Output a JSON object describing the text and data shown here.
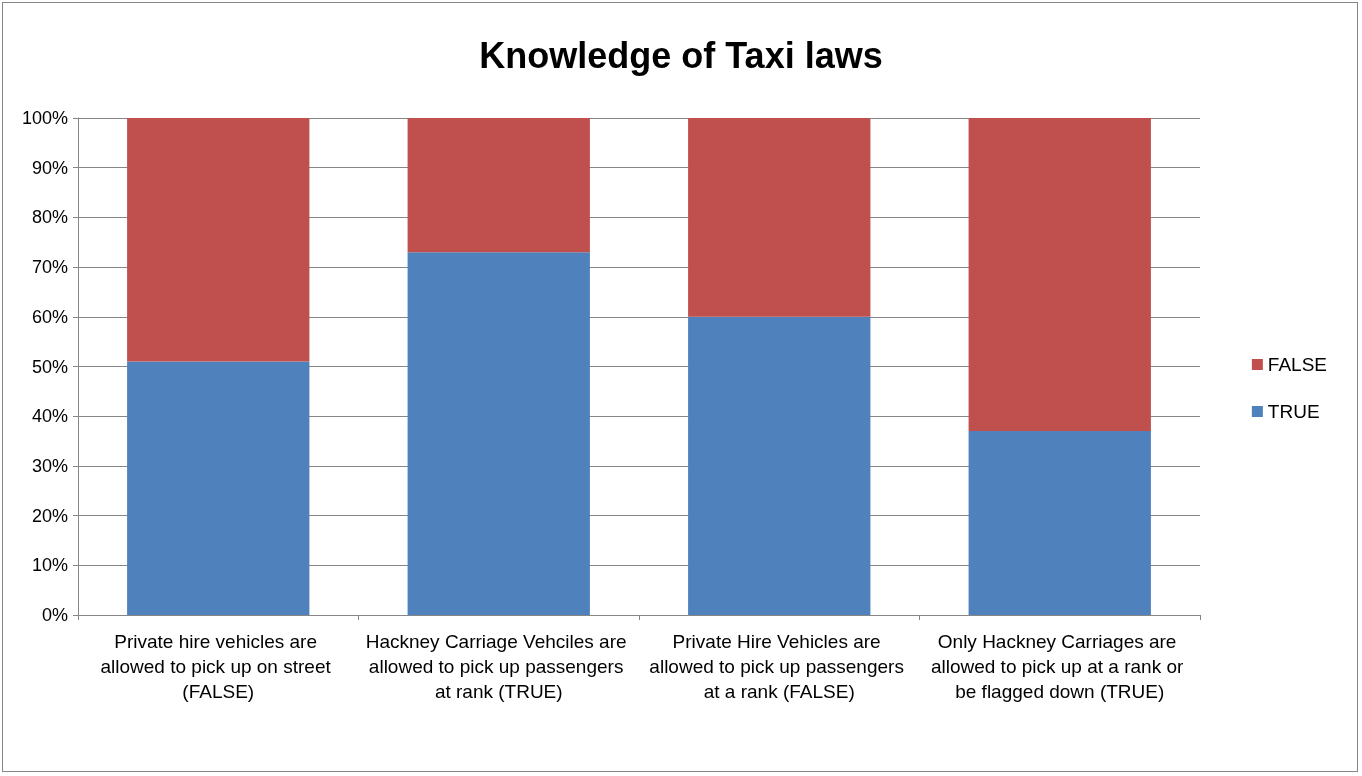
{
  "chart_data": {
    "type": "bar",
    "title": "Knowledge of Taxi laws",
    "categories": [
      "Private hire vehicles are allowed to pick up on street (FALSE)",
      "Hackney Carriage Vehciles are allowed to pick up passengers at rank (TRUE)",
      "Private Hire Vehicles are allowed to pick up passengers at a rank (FALSE)",
      "Only Hackney Carriages are allowed to pick up at a rank or be flagged down (TRUE)"
    ],
    "series": [
      {
        "name": "TRUE",
        "color": "#4f81bd",
        "values": [
          51,
          73,
          60,
          37
        ]
      },
      {
        "name": "FALSE",
        "color": "#c0504d",
        "values": [
          49,
          27,
          40,
          63
        ]
      }
    ],
    "stacked": true,
    "ylim": [
      0,
      100
    ],
    "yticks": [
      {
        "value": 0,
        "label": "0%"
      },
      {
        "value": 10,
        "label": "10%"
      },
      {
        "value": 20,
        "label": "20%"
      },
      {
        "value": 30,
        "label": "30%"
      },
      {
        "value": 40,
        "label": "40%"
      },
      {
        "value": 50,
        "label": "50%"
      },
      {
        "value": 60,
        "label": "60%"
      },
      {
        "value": 70,
        "label": "70%"
      },
      {
        "value": 80,
        "label": "80%"
      },
      {
        "value": 90,
        "label": "90%"
      },
      {
        "value": 100,
        "label": "100%"
      }
    ],
    "grid": "y",
    "legend": "right"
  }
}
